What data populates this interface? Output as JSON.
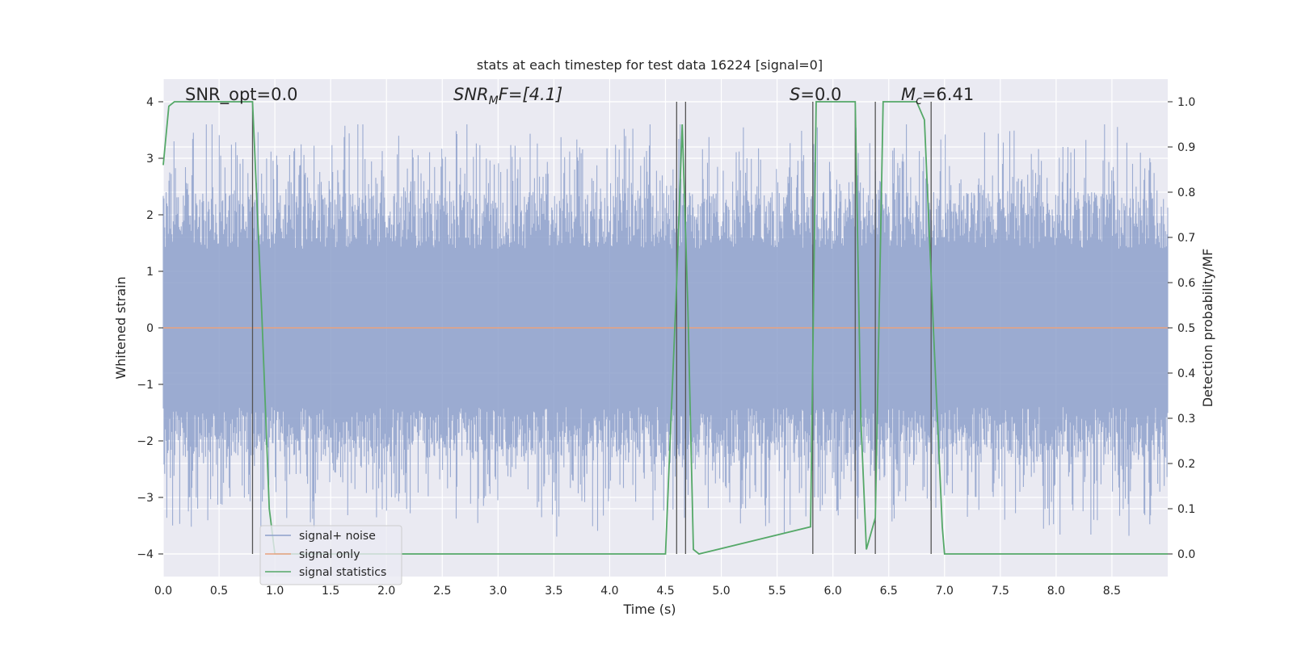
{
  "chart_data": {
    "type": "line",
    "title": "stats at each timestep for test data 16224 [signal=0]",
    "xlabel": "Time (s)",
    "ylabel_left": "Whitened strain",
    "ylabel_right": "Detection probability/MF",
    "xlim": [
      0.0,
      9.0
    ],
    "ylim_left": [
      -4.4,
      4.4
    ],
    "ylim_right": [
      -0.05,
      1.05
    ],
    "xticks": [
      "0.0",
      "0.5",
      "1.0",
      "1.5",
      "2.0",
      "2.5",
      "3.0",
      "3.5",
      "4.0",
      "4.5",
      "5.0",
      "5.5",
      "6.0",
      "6.5",
      "7.0",
      "7.5",
      "8.0",
      "8.5"
    ],
    "yticks_left": [
      "4",
      "3",
      "2",
      "1",
      "0",
      "−1",
      "−2",
      "−3",
      "−4"
    ],
    "yticks_right": [
      "1.0",
      "0.9",
      "0.8",
      "0.7",
      "0.6",
      "0.5",
      "0.4",
      "0.3",
      "0.2",
      "0.1",
      "0.0"
    ],
    "grid": true,
    "legend_placement": "lower-left",
    "annotations": {
      "snr_opt": "SNR_opt=0.0",
      "snr_mf_main": "SNR",
      "snr_mf_sub": "M",
      "snr_mf_rest": "F=[4.1]",
      "s_main": "S",
      "s_rest": "=0.0",
      "mc_main": "M",
      "mc_sub": "c",
      "mc_rest": "=6.41"
    },
    "series": [
      {
        "name": "signal+ noise",
        "color": "#8da0cb",
        "x_range": [
          0.0,
          9.0
        ],
        "y_envelope": [
          -3.8,
          3.6
        ],
        "note": "dense noise band"
      },
      {
        "name": "signal only",
        "color": "#e8a27e",
        "x": [
          0.0,
          9.0
        ],
        "y": [
          0.0,
          0.0
        ]
      },
      {
        "name": "signal statistics",
        "color": "#55a868",
        "x": [
          0.0,
          0.05,
          0.1,
          0.2,
          0.5,
          0.8,
          0.88,
          0.95,
          1.0,
          4.5,
          4.6,
          4.65,
          4.7,
          4.75,
          4.8,
          5.8,
          5.85,
          5.9,
          6.2,
          6.25,
          6.3,
          6.38,
          6.45,
          6.75,
          6.82,
          6.9,
          6.98,
          7.0,
          9.0
        ],
        "y": [
          0.86,
          0.99,
          1.0,
          1.0,
          1.0,
          1.0,
          0.55,
          0.1,
          0.0,
          0.0,
          0.6,
          0.95,
          0.55,
          0.01,
          0.0,
          0.06,
          1.0,
          1.0,
          1.0,
          0.3,
          0.01,
          0.08,
          1.0,
          1.0,
          0.96,
          0.5,
          0.06,
          0.0,
          0.0
        ]
      }
    ],
    "vlines_x": [
      0.8,
      4.6,
      4.68,
      5.82,
      6.2,
      6.38,
      6.88
    ]
  }
}
